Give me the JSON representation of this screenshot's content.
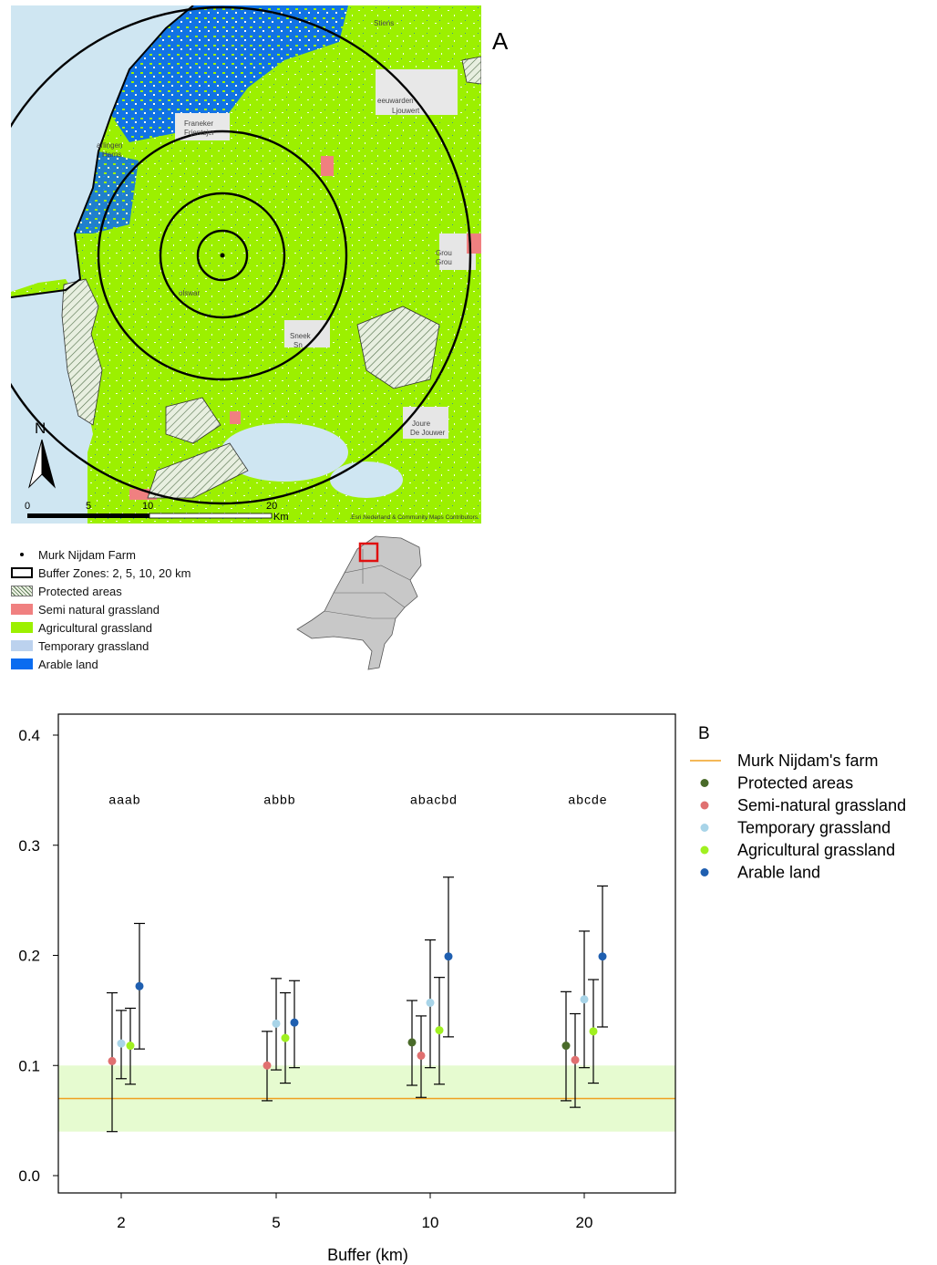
{
  "panel_a": {
    "label": "A",
    "north": "N",
    "scale_ticks": [
      "0",
      "5",
      "10",
      "20"
    ],
    "scale_unit": "Km",
    "attribution": "Esri Nederland & Community Maps Contributors",
    "places": [
      {
        "name": "Stiens"
      },
      {
        "name": "Leeuwarden",
        "shown": "eeuwarden",
        "sub": "Ljouwert"
      },
      {
        "name": "Franeker",
        "shown": "Franeker",
        "sub": "Frjentsjer"
      },
      {
        "name": "Harlingen",
        "shown": "arlingen",
        "sub": "Harns"
      },
      {
        "name": "Bolsward",
        "shown": "olswar"
      },
      {
        "name": "Sneek",
        "shown": "Sneek",
        "sub": "Sn"
      },
      {
        "name": "Grou",
        "shown": "Grou",
        "sub": "Grou"
      },
      {
        "name": "Joure",
        "shown": "Joure",
        "sub": "De Jouwer"
      }
    ],
    "legend": [
      {
        "label": "Murk Nijdam Farm",
        "kind": "point"
      },
      {
        "label": "Buffer Zones: 2, 5, 10, 20 km",
        "kind": "ring"
      },
      {
        "label": "Protected areas",
        "kind": "hatch"
      },
      {
        "label": "Semi natural grassland",
        "kind": "fill",
        "color": "#f08080"
      },
      {
        "label": "Agricultural grassland",
        "kind": "fill",
        "color": "#9cf000"
      },
      {
        "label": "Temporary grassland",
        "kind": "fill",
        "color": "#bcd2ee"
      },
      {
        "label": "Arable land",
        "kind": "fill",
        "color": "#0a6cf0"
      }
    ]
  },
  "chart_data": {
    "type": "scatter",
    "panel_label": "B",
    "xlabel": "Buffer (km)",
    "ylabel": "",
    "categories": [
      "2",
      "5",
      "10",
      "20"
    ],
    "ylim": [
      0,
      0.4
    ],
    "yticks": [
      "0.0",
      "0.1",
      "0.2",
      "0.3",
      "0.4"
    ],
    "reference": {
      "name": "Murk Nijdam's farm",
      "value": 0.07,
      "band": [
        0.04,
        0.1
      ],
      "line_color": "#f0a020",
      "band_color": "#e6fbd0"
    },
    "letters": [
      "aaab",
      "abbb",
      "abacbd",
      "abcde"
    ],
    "series": [
      {
        "name": "Protected areas",
        "color": "#4a6b2a",
        "values": [
          null,
          null,
          0.121,
          0.118
        ],
        "lower": [
          null,
          null,
          0.082,
          0.068
        ],
        "upper": [
          null,
          null,
          0.159,
          0.167
        ]
      },
      {
        "name": "Semi-natural grassland",
        "color": "#e07070",
        "values": [
          0.104,
          0.1,
          0.109,
          0.105
        ],
        "lower": [
          0.04,
          0.068,
          0.071,
          0.062
        ],
        "upper": [
          0.166,
          0.131,
          0.145,
          0.147
        ]
      },
      {
        "name": "Temporary grassland",
        "color": "#a8d4e8",
        "values": [
          0.12,
          0.138,
          0.157,
          0.16
        ],
        "lower": [
          0.088,
          0.096,
          0.098,
          0.098
        ],
        "upper": [
          0.15,
          0.179,
          0.214,
          0.222
        ]
      },
      {
        "name": "Agricultural grassland",
        "color": "#a0f020",
        "values": [
          0.118,
          0.125,
          0.132,
          0.131
        ],
        "lower": [
          0.083,
          0.084,
          0.083,
          0.084
        ],
        "upper": [
          0.152,
          0.166,
          0.18,
          0.178
        ]
      },
      {
        "name": "Arable land",
        "color": "#1f5fb0",
        "values": [
          0.172,
          0.139,
          0.199,
          0.199
        ],
        "lower": [
          0.115,
          0.098,
          0.126,
          0.135
        ],
        "upper": [
          0.229,
          0.177,
          0.271,
          0.263
        ]
      }
    ]
  }
}
